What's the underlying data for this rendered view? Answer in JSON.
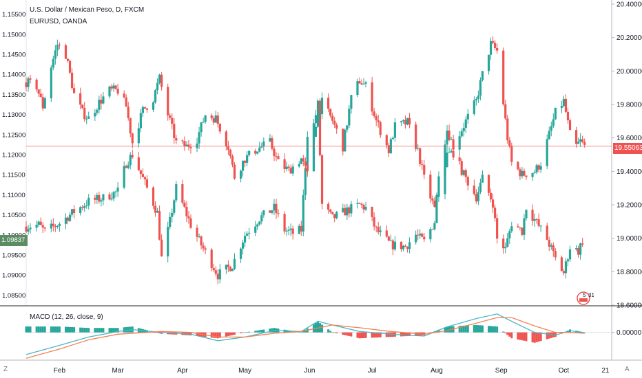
{
  "header": {
    "title": "U.S. Dollar / Mexican Peso, D, FXCM",
    "compare": "EURUSD, OANDA"
  },
  "macd_label": "MACD (12, 26, close, 9)",
  "last_prices": {
    "main": "19.55063",
    "compare": "1.09837"
  },
  "badge": {
    "count": "5",
    "date": "31"
  },
  "bottom_left_icon": "Z",
  "bottom_right_icon": "A",
  "colors": {
    "up": "#26a69a",
    "down": "#ef5350",
    "macd": "#4ab6c8",
    "signal": "#f57f4f",
    "hist_up": "#26a69a",
    "hist_down": "#ef5350",
    "priceline": "#ef5350",
    "compare_tag": "#5b8c62"
  },
  "chart_data": [
    {
      "type": "candlestick",
      "title": "U.S. Dollar / Mexican Peso, D, FXCM",
      "y_axis": "right",
      "ylim": [
        18.6,
        20.4
      ],
      "right_ticks": [
        "20.40000",
        "20.20000",
        "20.00000",
        "19.80000",
        "19.60000",
        "19.40000",
        "19.20000",
        "19.00000",
        "18.80000",
        "18.60000"
      ],
      "x_ticks": [
        "Feb",
        "Mar",
        "Apr",
        "May",
        "Jun",
        "Jul",
        "Aug",
        "Sep",
        "Oct",
        "21"
      ],
      "x_range": [
        "2019-01-16",
        "2019-10-24"
      ],
      "last_price": 19.55063,
      "close_path": [
        {
          "date": "2019-01-16",
          "close": 19.07
        },
        {
          "date": "2019-01-22",
          "close": 19.08
        },
        {
          "date": "2019-01-25",
          "close": 19.04
        },
        {
          "date": "2019-02-01",
          "close": 19.09
        },
        {
          "date": "2019-02-08",
          "close": 19.16
        },
        {
          "date": "2019-02-15",
          "close": 19.22
        },
        {
          "date": "2019-02-22",
          "close": 19.24
        },
        {
          "date": "2019-03-01",
          "close": 19.28
        },
        {
          "date": "2019-03-05",
          "close": 19.45
        },
        {
          "date": "2019-03-08",
          "close": 19.5
        },
        {
          "date": "2019-03-15",
          "close": 19.3
        },
        {
          "date": "2019-03-20",
          "close": 19.15
        },
        {
          "date": "2019-03-22",
          "close": 18.88
        },
        {
          "date": "2019-03-26",
          "close": 19.1
        },
        {
          "date": "2019-03-29",
          "close": 19.3
        },
        {
          "date": "2019-04-05",
          "close": 19.08
        },
        {
          "date": "2019-04-10",
          "close": 18.96
        },
        {
          "date": "2019-04-15",
          "close": 18.85
        },
        {
          "date": "2019-04-18",
          "close": 18.78
        },
        {
          "date": "2019-04-25",
          "close": 18.84
        },
        {
          "date": "2019-05-01",
          "close": 19.02
        },
        {
          "date": "2019-05-08",
          "close": 19.12
        },
        {
          "date": "2019-05-15",
          "close": 19.18
        },
        {
          "date": "2019-05-20",
          "close": 19.05
        },
        {
          "date": "2019-05-24",
          "close": 19.03
        },
        {
          "date": "2019-05-28",
          "close": 19.05
        },
        {
          "date": "2019-05-31",
          "close": 19.63
        },
        {
          "date": "2019-06-03",
          "close": 19.68
        },
        {
          "date": "2019-06-05",
          "close": 19.8
        },
        {
          "date": "2019-06-07",
          "close": 19.2
        },
        {
          "date": "2019-06-12",
          "close": 19.12
        },
        {
          "date": "2019-06-18",
          "close": 19.16
        },
        {
          "date": "2019-06-25",
          "close": 19.2
        },
        {
          "date": "2019-06-28",
          "close": 19.18
        },
        {
          "date": "2019-07-03",
          "close": 19.05
        },
        {
          "date": "2019-07-10",
          "close": 18.96
        },
        {
          "date": "2019-07-17",
          "close": 18.95
        },
        {
          "date": "2019-07-22",
          "close": 19.02
        },
        {
          "date": "2019-07-26",
          "close": 18.98
        },
        {
          "date": "2019-07-31",
          "close": 19.1
        },
        {
          "date": "2019-08-02",
          "close": 19.4
        },
        {
          "date": "2019-08-06",
          "close": 19.65
        },
        {
          "date": "2019-08-09",
          "close": 19.55
        },
        {
          "date": "2019-08-15",
          "close": 19.7
        },
        {
          "date": "2019-08-20",
          "close": 19.82
        },
        {
          "date": "2019-08-23",
          "close": 19.98
        },
        {
          "date": "2019-08-27",
          "close": 20.16
        },
        {
          "date": "2019-08-30",
          "close": 20.12
        },
        {
          "date": "2019-09-04",
          "close": 19.6
        },
        {
          "date": "2019-09-06",
          "close": 19.45
        },
        {
          "date": "2019-09-11",
          "close": 19.38
        },
        {
          "date": "2019-09-17",
          "close": 19.4
        },
        {
          "date": "2019-09-20",
          "close": 19.45
        },
        {
          "date": "2019-09-24",
          "close": 19.62
        },
        {
          "date": "2019-09-27",
          "close": 19.75
        },
        {
          "date": "2019-10-01",
          "close": 19.82
        },
        {
          "date": "2019-10-04",
          "close": 19.62
        },
        {
          "date": "2019-10-07",
          "close": 19.55
        },
        {
          "date": "2019-10-09",
          "close": 19.58
        },
        {
          "date": "2019-10-11",
          "close": 19.55
        }
      ]
    },
    {
      "type": "candlestick",
      "title": "EURUSD, OANDA",
      "y_axis": "left",
      "ylim": [
        1.0825,
        1.1575
      ],
      "left_ticks": [
        "1.15500",
        "1.15000",
        "1.14500",
        "1.14000",
        "1.13500",
        "1.13000",
        "1.12500",
        "1.12000",
        "1.11500",
        "1.11000",
        "1.10500",
        "1.10000",
        "1.09500",
        "1.09000",
        "1.08500"
      ],
      "last_price": 1.09837,
      "close_path": [
        {
          "date": "2019-01-16",
          "close": 1.138
        },
        {
          "date": "2019-01-21",
          "close": 1.137
        },
        {
          "date": "2019-01-24",
          "close": 1.132
        },
        {
          "date": "2019-01-28",
          "close": 1.142
        },
        {
          "date": "2019-01-31",
          "close": 1.1475
        },
        {
          "date": "2019-02-04",
          "close": 1.145
        },
        {
          "date": "2019-02-08",
          "close": 1.135
        },
        {
          "date": "2019-02-12",
          "close": 1.1305
        },
        {
          "date": "2019-02-15",
          "close": 1.129
        },
        {
          "date": "2019-02-20",
          "close": 1.133
        },
        {
          "date": "2019-02-25",
          "close": 1.136
        },
        {
          "date": "2019-03-01",
          "close": 1.136
        },
        {
          "date": "2019-03-05",
          "close": 1.132
        },
        {
          "date": "2019-03-08",
          "close": 1.123
        },
        {
          "date": "2019-03-13",
          "close": 1.131
        },
        {
          "date": "2019-03-18",
          "close": 1.134
        },
        {
          "date": "2019-03-21",
          "close": 1.139
        },
        {
          "date": "2019-03-25",
          "close": 1.13
        },
        {
          "date": "2019-03-29",
          "close": 1.123
        },
        {
          "date": "2019-04-03",
          "close": 1.122
        },
        {
          "date": "2019-04-08",
          "close": 1.124
        },
        {
          "date": "2019-04-12",
          "close": 1.13
        },
        {
          "date": "2019-04-17",
          "close": 1.129
        },
        {
          "date": "2019-04-23",
          "close": 1.122
        },
        {
          "date": "2019-04-26",
          "close": 1.1145
        },
        {
          "date": "2019-05-01",
          "close": 1.119
        },
        {
          "date": "2019-05-07",
          "close": 1.1215
        },
        {
          "date": "2019-05-13",
          "close": 1.123
        },
        {
          "date": "2019-05-17",
          "close": 1.118
        },
        {
          "date": "2019-05-22",
          "close": 1.116
        },
        {
          "date": "2019-05-28",
          "close": 1.119
        },
        {
          "date": "2019-05-31",
          "close": 1.115
        },
        {
          "date": "2019-06-04",
          "close": 1.128
        },
        {
          "date": "2019-06-07",
          "close": 1.133
        },
        {
          "date": "2019-06-12",
          "close": 1.1285
        },
        {
          "date": "2019-06-17",
          "close": 1.122
        },
        {
          "date": "2019-06-21",
          "close": 1.134
        },
        {
          "date": "2019-06-25",
          "close": 1.1385
        },
        {
          "date": "2019-06-28",
          "close": 1.137
        },
        {
          "date": "2019-07-03",
          "close": 1.1285
        },
        {
          "date": "2019-07-09",
          "close": 1.121
        },
        {
          "date": "2019-07-12",
          "close": 1.127
        },
        {
          "date": "2019-07-18",
          "close": 1.128
        },
        {
          "date": "2019-07-23",
          "close": 1.121
        },
        {
          "date": "2019-07-26",
          "close": 1.114
        },
        {
          "date": "2019-07-31",
          "close": 1.1065
        },
        {
          "date": "2019-08-02",
          "close": 1.1105
        },
        {
          "date": "2019-08-06",
          "close": 1.12
        },
        {
          "date": "2019-08-09",
          "close": 1.1205
        },
        {
          "date": "2019-08-14",
          "close": 1.115
        },
        {
          "date": "2019-08-20",
          "close": 1.1095
        },
        {
          "date": "2019-08-23",
          "close": 1.114
        },
        {
          "date": "2019-08-28",
          "close": 1.108
        },
        {
          "date": "2019-08-30",
          "close": 1.099
        },
        {
          "date": "2019-09-03",
          "close": 1.0965
        },
        {
          "date": "2019-09-06",
          "close": 1.103
        },
        {
          "date": "2019-09-11",
          "close": 1.101
        },
        {
          "date": "2019-09-13",
          "close": 1.107
        },
        {
          "date": "2019-09-18",
          "close": 1.103
        },
        {
          "date": "2019-09-23",
          "close": 1.099
        },
        {
          "date": "2019-09-27",
          "close": 1.094
        },
        {
          "date": "2019-10-01",
          "close": 1.0905
        },
        {
          "date": "2019-10-04",
          "close": 1.097
        },
        {
          "date": "2019-10-08",
          "close": 1.096
        },
        {
          "date": "2019-10-10",
          "close": 1.0985
        }
      ]
    },
    {
      "type": "line",
      "title": "MACD (12, 26, close, 9)",
      "right_ticks": [
        "0.00000"
      ],
      "histogram_style": "bar",
      "series": [
        {
          "name": "MACD",
          "values_by_date": [
            {
              "date": "2019-01-16",
              "v": -0.24
            },
            {
              "date": "2019-02-01",
              "v": -0.14
            },
            {
              "date": "2019-02-15",
              "v": -0.05
            },
            {
              "date": "2019-03-01",
              "v": 0.01
            },
            {
              "date": "2019-03-08",
              "v": 0.03
            },
            {
              "date": "2019-03-22",
              "v": 0.0
            },
            {
              "date": "2019-04-05",
              "v": -0.02
            },
            {
              "date": "2019-04-18",
              "v": -0.09
            },
            {
              "date": "2019-05-01",
              "v": -0.05
            },
            {
              "date": "2019-05-15",
              "v": 0.02
            },
            {
              "date": "2019-05-28",
              "v": 0.01
            },
            {
              "date": "2019-06-05",
              "v": 0.12
            },
            {
              "date": "2019-06-12",
              "v": 0.08
            },
            {
              "date": "2019-06-25",
              "v": 0.01
            },
            {
              "date": "2019-07-10",
              "v": -0.02
            },
            {
              "date": "2019-07-26",
              "v": -0.04
            },
            {
              "date": "2019-08-06",
              "v": 0.06
            },
            {
              "date": "2019-08-20",
              "v": 0.15
            },
            {
              "date": "2019-08-30",
              "v": 0.2
            },
            {
              "date": "2019-09-06",
              "v": 0.12
            },
            {
              "date": "2019-09-17",
              "v": 0.0
            },
            {
              "date": "2019-09-27",
              "v": -0.03
            },
            {
              "date": "2019-10-04",
              "v": 0.02
            },
            {
              "date": "2019-10-11",
              "v": -0.01
            }
          ]
        },
        {
          "name": "Signal",
          "values_by_date": [
            {
              "date": "2019-01-16",
              "v": -0.28
            },
            {
              "date": "2019-02-01",
              "v": -0.18
            },
            {
              "date": "2019-02-15",
              "v": -0.08
            },
            {
              "date": "2019-03-01",
              "v": -0.02
            },
            {
              "date": "2019-03-22",
              "v": 0.01
            },
            {
              "date": "2019-04-05",
              "v": 0.0
            },
            {
              "date": "2019-04-18",
              "v": -0.05
            },
            {
              "date": "2019-05-01",
              "v": -0.05
            },
            {
              "date": "2019-05-15",
              "v": -0.01
            },
            {
              "date": "2019-05-28",
              "v": 0.01
            },
            {
              "date": "2019-06-12",
              "v": 0.08
            },
            {
              "date": "2019-06-25",
              "v": 0.05
            },
            {
              "date": "2019-07-10",
              "v": 0.01
            },
            {
              "date": "2019-07-26",
              "v": -0.02
            },
            {
              "date": "2019-08-06",
              "v": 0.02
            },
            {
              "date": "2019-08-20",
              "v": 0.1
            },
            {
              "date": "2019-08-30",
              "v": 0.16
            },
            {
              "date": "2019-09-06",
              "v": 0.16
            },
            {
              "date": "2019-09-17",
              "v": 0.07
            },
            {
              "date": "2019-09-27",
              "v": 0.0
            },
            {
              "date": "2019-10-04",
              "v": 0.0
            },
            {
              "date": "2019-10-11",
              "v": -0.01
            }
          ]
        }
      ]
    }
  ]
}
